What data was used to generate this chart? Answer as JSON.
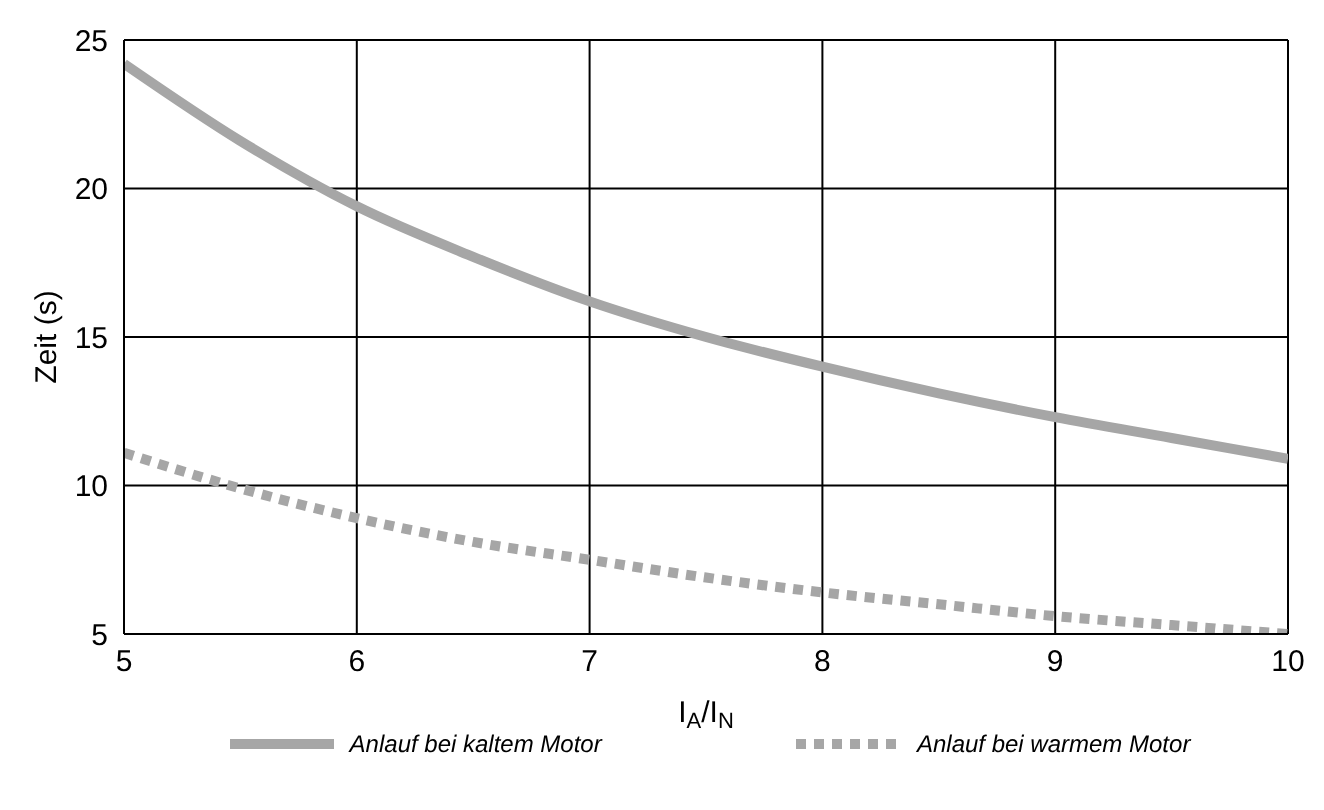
{
  "chart_data": {
    "type": "line",
    "xlabel": "I$_{A}$/I$_{N}$",
    "ylabel": "Zeit (s)",
    "x": [
      5,
      5.5,
      6,
      6.5,
      7,
      7.5,
      8,
      8.5,
      9,
      9.5,
      10
    ],
    "xlim": [
      5,
      10
    ],
    "xticks": [
      5,
      6,
      7,
      8,
      9,
      10
    ],
    "ylim": [
      5,
      25
    ],
    "yticks": [
      5,
      10,
      15,
      20,
      25
    ],
    "grid": true,
    "legend": "bottom",
    "marker": "none",
    "series": [
      {
        "name": "Anlauf bei kaltem Motor",
        "color": "#a6a6a6",
        "line_style": "solid",
        "values": [
          24.2,
          21.6,
          19.4,
          17.7,
          16.2,
          15.0,
          14.0,
          13.1,
          12.3,
          11.6,
          10.9
        ]
      },
      {
        "name": "Anlauf bei warmem Motor",
        "color": "#a6a6a6",
        "line_style": "dotted",
        "values": [
          11.1,
          9.9,
          8.9,
          8.1,
          7.5,
          6.9,
          6.4,
          6.0,
          5.6,
          5.3,
          5.0
        ]
      }
    ]
  }
}
